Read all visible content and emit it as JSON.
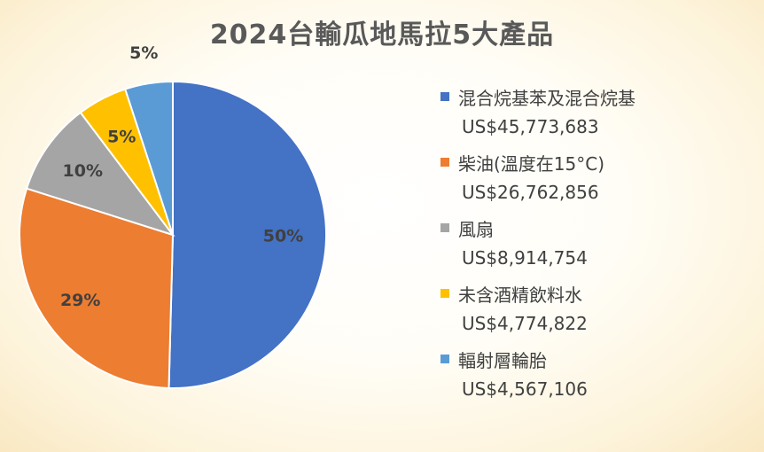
{
  "chart_data": {
    "type": "pie",
    "title": "2024台輸瓜地馬拉5大產品",
    "categories": [
      "混合烷基苯及混合烷基",
      "柴油(溫度在15°C)",
      "風扇",
      "未含酒精飲料水",
      "輻射層輪胎"
    ],
    "values": [
      45773683,
      26762856,
      8914754,
      4774822,
      4567106
    ],
    "value_labels": [
      "US$45,773,683",
      "US$26,762,856",
      "US$8,914,754",
      "US$4,774,822",
      "US$4,567,106"
    ],
    "percent_labels": [
      "50%",
      "29%",
      "10%",
      "5%",
      "5%"
    ],
    "colors": [
      "#4472C4",
      "#ED7D31",
      "#A5A5A5",
      "#FFC000",
      "#5B9BD5"
    ],
    "legend_position": "right",
    "start_angle_deg": 0,
    "direction": "clockwise"
  }
}
